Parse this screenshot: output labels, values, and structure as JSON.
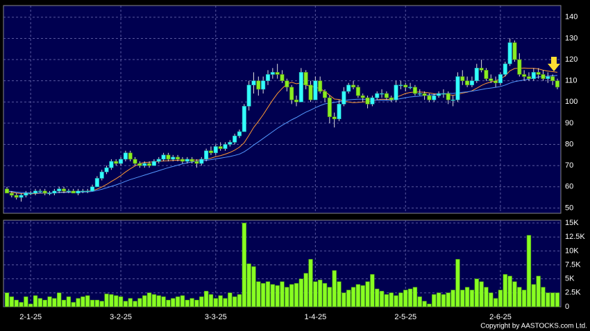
{
  "chart_data": {
    "type": "candlestick",
    "categories": [
      null,
      null,
      null,
      null,
      null,
      "2-1-25",
      null,
      null,
      null,
      null,
      null,
      null,
      null,
      null,
      null,
      null,
      null,
      null,
      null,
      null,
      null,
      null,
      null,
      null,
      "3-2-25",
      null,
      null,
      null,
      null,
      null,
      null,
      null,
      null,
      null,
      null,
      null,
      null,
      null,
      null,
      null,
      null,
      null,
      null,
      null,
      "3-3-25",
      null,
      null,
      null,
      null,
      null,
      null,
      null,
      null,
      null,
      null,
      null,
      null,
      null,
      null,
      null,
      null,
      null,
      null,
      null,
      null,
      "1-4-25",
      null,
      null,
      null,
      null,
      null,
      null,
      null,
      null,
      null,
      null,
      null,
      null,
      null,
      null,
      null,
      null,
      null,
      null,
      "2-5-25",
      null,
      null,
      null,
      null,
      null,
      null,
      null,
      null,
      null,
      null,
      null,
      null,
      null,
      null,
      null,
      null,
      null,
      null,
      null,
      "2-6-25",
      null,
      null,
      null,
      null,
      null,
      null,
      null,
      null,
      null,
      null,
      null,
      null
    ],
    "ohlc": [
      [
        59,
        60,
        57,
        57
      ],
      [
        57,
        58,
        55,
        56
      ],
      [
        56,
        57,
        54,
        55
      ],
      [
        55,
        57,
        53,
        56
      ],
      [
        56,
        58,
        55,
        57
      ],
      [
        57,
        58,
        56,
        57
      ],
      [
        57,
        59,
        56,
        58
      ],
      [
        58,
        59,
        57,
        58
      ],
      [
        58,
        59,
        56,
        57
      ],
      [
        57,
        58,
        56,
        57
      ],
      [
        57,
        59,
        56,
        58
      ],
      [
        58,
        60,
        57,
        59
      ],
      [
        59,
        60,
        57,
        58
      ],
      [
        58,
        59,
        57,
        58
      ],
      [
        58,
        59,
        57,
        57
      ],
      [
        57,
        59,
        56,
        58
      ],
      [
        58,
        59,
        57,
        58
      ],
      [
        58,
        59,
        57,
        58
      ],
      [
        58,
        61,
        58,
        60
      ],
      [
        60,
        65,
        60,
        64
      ],
      [
        64,
        68,
        63,
        67
      ],
      [
        67,
        70,
        66,
        69
      ],
      [
        69,
        73,
        68,
        72
      ],
      [
        72,
        73,
        70,
        71
      ],
      [
        71,
        74,
        70,
        73
      ],
      [
        73,
        77,
        72,
        76
      ],
      [
        76,
        77,
        72,
        73
      ],
      [
        73,
        74,
        70,
        71
      ],
      [
        71,
        72,
        69,
        70
      ],
      [
        70,
        72,
        69,
        71
      ],
      [
        71,
        72,
        69,
        70
      ],
      [
        70,
        73,
        70,
        72
      ],
      [
        72,
        74,
        71,
        73
      ],
      [
        73,
        76,
        72,
        75
      ],
      [
        75,
        76,
        72,
        73
      ],
      [
        73,
        75,
        72,
        74
      ],
      [
        74,
        75,
        72,
        73
      ],
      [
        73,
        74,
        71,
        72
      ],
      [
        72,
        74,
        71,
        73
      ],
      [
        73,
        74,
        71,
        72
      ],
      [
        72,
        73,
        69,
        71
      ],
      [
        71,
        74,
        70,
        73
      ],
      [
        73,
        78,
        72,
        77
      ],
      [
        77,
        79,
        75,
        76
      ],
      [
        76,
        80,
        75,
        79
      ],
      [
        79,
        81,
        77,
        78
      ],
      [
        78,
        81,
        77,
        80
      ],
      [
        80,
        82,
        79,
        81
      ],
      [
        81,
        85,
        80,
        84
      ],
      [
        84,
        87,
        83,
        86
      ],
      [
        86,
        99,
        86,
        98
      ],
      [
        98,
        110,
        96,
        108
      ],
      [
        108,
        114,
        104,
        110
      ],
      [
        110,
        112,
        103,
        106
      ],
      [
        106,
        112,
        104,
        110
      ],
      [
        110,
        115,
        108,
        113
      ],
      [
        113,
        116,
        111,
        114
      ],
      [
        114,
        118,
        111,
        113
      ],
      [
        113,
        115,
        109,
        110
      ],
      [
        110,
        111,
        105,
        107
      ],
      [
        107,
        108,
        99,
        101
      ],
      [
        101,
        103,
        98,
        100
      ],
      [
        100,
        116,
        100,
        114
      ],
      [
        114,
        115,
        106,
        108
      ],
      [
        108,
        110,
        100,
        101
      ],
      [
        101,
        112,
        101,
        110
      ],
      [
        110,
        112,
        104,
        105
      ],
      [
        105,
        106,
        100,
        102
      ],
      [
        102,
        103,
        90,
        93
      ],
      [
        93,
        95,
        88,
        92
      ],
      [
        92,
        101,
        91,
        99
      ],
      [
        99,
        107,
        98,
        105
      ],
      [
        105,
        109,
        104,
        108
      ],
      [
        108,
        110,
        106,
        107
      ],
      [
        107,
        108,
        102,
        103
      ],
      [
        103,
        104,
        100,
        102
      ],
      [
        102,
        103,
        97,
        99
      ],
      [
        99,
        103,
        98,
        102
      ],
      [
        102,
        105,
        101,
        104
      ],
      [
        104,
        106,
        102,
        104
      ],
      [
        104,
        105,
        101,
        102
      ],
      [
        102,
        103,
        100,
        101
      ],
      [
        101,
        110,
        100,
        108
      ],
      [
        108,
        110,
        106,
        108
      ],
      [
        108,
        109,
        105,
        107
      ],
      [
        107,
        109,
        106,
        107
      ],
      [
        107,
        108,
        103,
        104
      ],
      [
        104,
        106,
        103,
        104
      ],
      [
        104,
        105,
        101,
        103
      ],
      [
        103,
        104,
        100,
        101
      ],
      [
        101,
        104,
        100,
        103
      ],
      [
        103,
        105,
        102,
        104
      ],
      [
        104,
        106,
        102,
        104
      ],
      [
        104,
        105,
        99,
        101
      ],
      [
        101,
        103,
        98,
        101
      ],
      [
        101,
        114,
        100,
        112
      ],
      [
        112,
        115,
        108,
        110
      ],
      [
        110,
        112,
        107,
        108
      ],
      [
        108,
        112,
        107,
        110
      ],
      [
        110,
        118,
        109,
        116
      ],
      [
        116,
        120,
        114,
        115
      ],
      [
        115,
        116,
        110,
        111
      ],
      [
        111,
        113,
        109,
        110
      ],
      [
        110,
        112,
        107,
        109
      ],
      [
        109,
        114,
        108,
        113
      ],
      [
        113,
        119,
        112,
        118
      ],
      [
        118,
        130,
        117,
        128
      ],
      [
        128,
        129,
        119,
        120
      ],
      [
        120,
        123,
        112,
        113
      ],
      [
        113,
        115,
        110,
        112
      ],
      [
        112,
        114,
        110,
        111
      ],
      [
        111,
        116,
        110,
        114
      ],
      [
        114,
        116,
        111,
        113
      ],
      [
        113,
        115,
        110,
        111
      ],
      [
        111,
        114,
        109,
        112
      ],
      [
        112,
        113,
        108,
        110
      ],
      [
        110,
        111,
        106,
        107
      ]
    ],
    "up_color": "#33ffff",
    "down_color": "#88ee22",
    "ylim": [
      47.5,
      145.5
    ],
    "yticks": [
      50,
      60,
      70,
      80,
      90,
      100,
      110,
      120,
      130,
      140
    ],
    "grid": true,
    "ma": [
      {
        "color": "#ff9933",
        "values": [
          58,
          57.5,
          57,
          56.8,
          56.7,
          56.7,
          56.8,
          57,
          57,
          57,
          57.2,
          57.4,
          57.5,
          57.6,
          57.6,
          57.7,
          57.8,
          57.9,
          58.2,
          58.9,
          59.9,
          61.1,
          62.5,
          63.8,
          65.3,
          67,
          68.5,
          69.8,
          71,
          71.5,
          71.6,
          71.8,
          72,
          72.2,
          72.3,
          72.4,
          72.5,
          72.6,
          72.6,
          72.6,
          72.6,
          72.7,
          73.2,
          73.5,
          74.2,
          74.7,
          75.4,
          76.2,
          77.3,
          78.7,
          80.8,
          84.3,
          88,
          90.9,
          94,
          97.5,
          100.9,
          104,
          106.4,
          108.5,
          109.3,
          108.6,
          109,
          108,
          107.4,
          107,
          106.3,
          105,
          103.2,
          101.4,
          101.2,
          100.4,
          100,
          99.7,
          99.8,
          100,
          100.1,
          100.6,
          101,
          101.3,
          101.2,
          101.3,
          102.2,
          103.1,
          104,
          104.5,
          104.7,
          104.7,
          104.6,
          104.3,
          103.9,
          103.8,
          103.8,
          103.5,
          103.1,
          103.6,
          104.2,
          104.6,
          105.3,
          106.5,
          107.8,
          108.8,
          109.4,
          110,
          110.9,
          112.3,
          114.7,
          115.8,
          115.9,
          116,
          115.9,
          115.9,
          115.6,
          115,
          114.6,
          114.3,
          114
        ]
      },
      {
        "color": "#5599ff",
        "values": [
          58,
          57.8,
          57.5,
          57.3,
          57.2,
          57.1,
          57.1,
          57.1,
          57.1,
          57.1,
          57.2,
          57.3,
          57.3,
          57.4,
          57.4,
          57.5,
          57.5,
          57.6,
          57.8,
          58.3,
          58.8,
          59.5,
          60.2,
          60.9,
          61.7,
          62.6,
          63.4,
          64.1,
          64.8,
          65.5,
          66.2,
          66.9,
          67.6,
          68.3,
          69,
          69.6,
          70.2,
          70.8,
          71.3,
          71.7,
          72,
          72.2,
          72.5,
          72.8,
          73.2,
          73.5,
          73.9,
          74.3,
          74.8,
          75.4,
          76.5,
          78,
          79.7,
          81.2,
          82.8,
          84.4,
          86,
          87.6,
          89,
          90.3,
          91.6,
          92.7,
          94,
          95.2,
          96.2,
          97.3,
          98.3,
          99.1,
          99.5,
          99.8,
          100.2,
          100.6,
          101,
          101.2,
          101.3,
          101.3,
          101.2,
          101,
          100.9,
          100.8,
          100.8,
          100.8,
          101.2,
          101.6,
          102,
          102.4,
          102.6,
          102.8,
          103.1,
          103.3,
          103.5,
          103.7,
          103.9,
          104.1,
          104,
          104.4,
          104.6,
          104.8,
          105.1,
          105.5,
          105.9,
          106.3,
          106.6,
          106.9,
          107.3,
          108,
          108.9,
          109.6,
          110,
          110.4,
          110.8,
          111.3,
          111.8,
          112,
          112.2,
          112.4,
          112.5
        ]
      }
    ],
    "volume": {
      "type": "bar",
      "color": "#88ff22",
      "values": [
        2500,
        1800,
        1200,
        800,
        1800,
        500,
        2000,
        1500,
        1200,
        1800,
        1500,
        2500,
        1200,
        1800,
        800,
        1500,
        1800,
        2000,
        1200,
        1200,
        1000,
        2300,
        2200,
        2000,
        1800,
        1000,
        1500,
        1000,
        1500,
        2000,
        2500,
        2200,
        2000,
        1800,
        1200,
        1500,
        1800,
        2000,
        1200,
        1500,
        1200,
        1800,
        2800,
        2200,
        1500,
        2000,
        1500,
        2500,
        1800,
        2200,
        15000,
        7700,
        7200,
        4500,
        4200,
        4500,
        4000,
        3800,
        4500,
        3500,
        4000,
        4200,
        5000,
        6000,
        8500,
        4500,
        4800,
        4200,
        3500,
        6500,
        4500,
        2500,
        3000,
        3500,
        4000,
        3800,
        4500,
        5800,
        3200,
        2800,
        2200,
        2500,
        2000,
        2500,
        3000,
        3200,
        3500,
        1800,
        1000,
        500,
        2200,
        2500,
        2200,
        2500,
        3000,
        8500,
        3000,
        3500,
        3000,
        5000,
        4500,
        3500,
        2500,
        1500,
        3000,
        5800,
        5500,
        4500,
        3500,
        3000,
        12800,
        4000,
        5500,
        3500,
        2500,
        2500,
        2500
      ],
      "ylim": [
        0,
        15500
      ],
      "yticks": [
        0,
        {
          "value": 2500,
          "label": "2.5K"
        },
        {
          "value": 5000,
          "label": "5K"
        },
        {
          "value": 7500,
          "label": "7.5K"
        },
        {
          "value": 10000,
          "label": "10K"
        },
        {
          "value": 12500,
          "label": "12.5K"
        },
        {
          "value": 15000,
          "label": "15K"
        }
      ]
    }
  },
  "footer": {
    "copyright": "Copyright by AASTOCKS.com Ltd."
  }
}
